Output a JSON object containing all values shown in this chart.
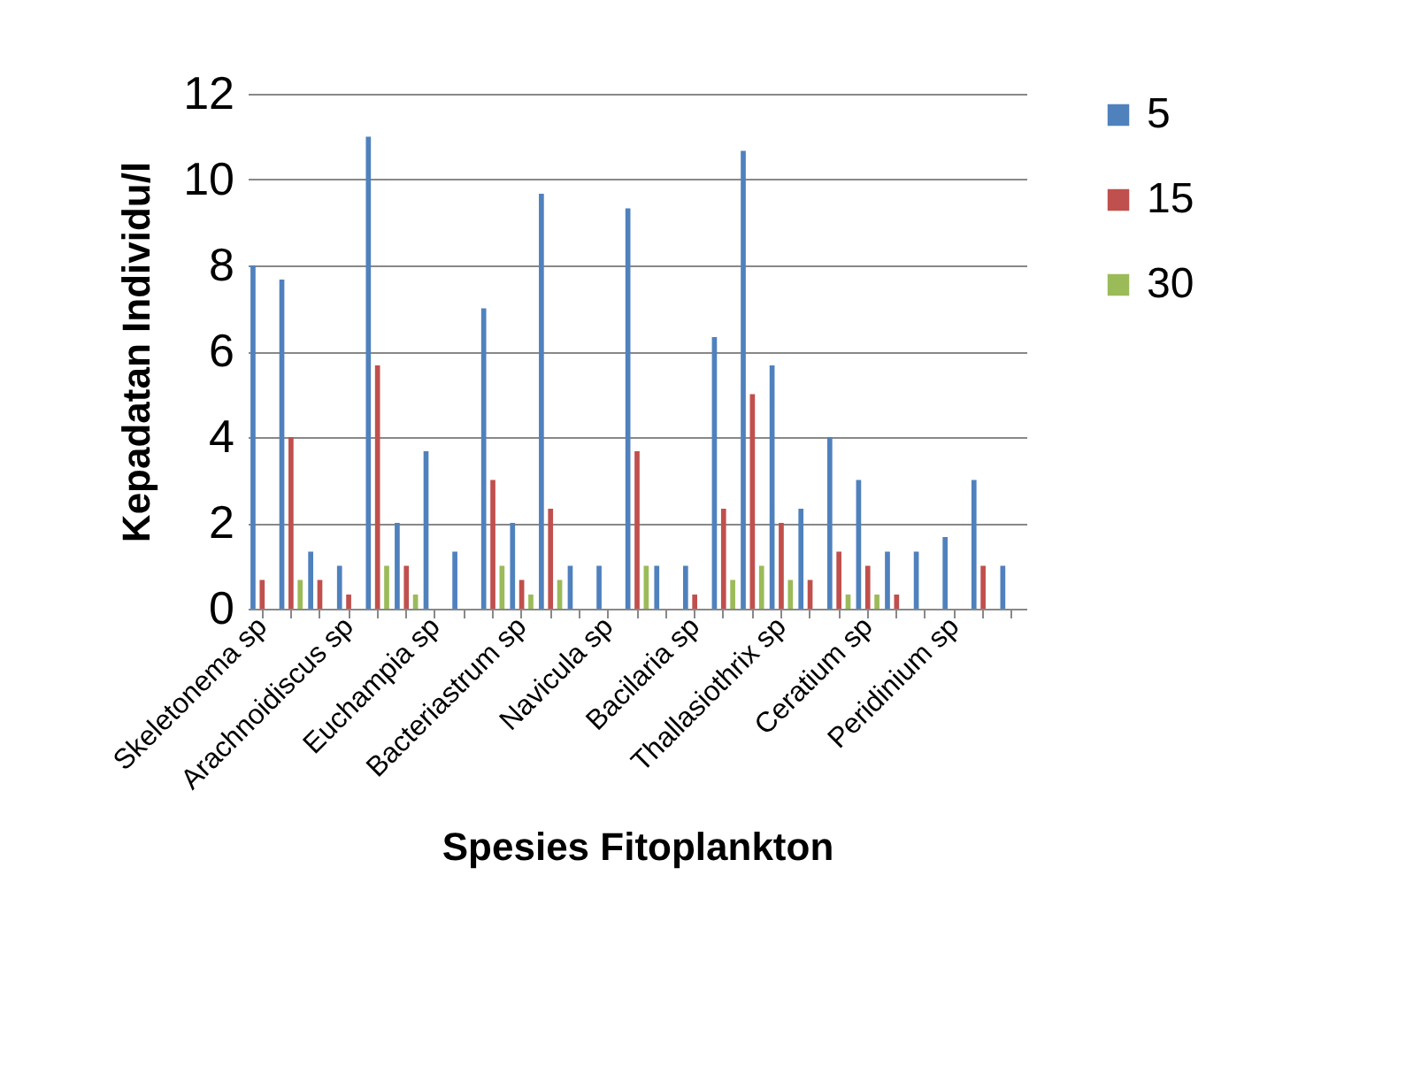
{
  "chart_data": {
    "type": "bar",
    "xlabel": "Spesies Fitoplankton",
    "ylabel": "Kepadatan Individu/l",
    "categories": [
      "Skeletonema sp",
      null,
      null,
      "Arachnoidiscus sp",
      null,
      null,
      "Euchampia sp",
      null,
      null,
      "Bacteriastrum sp",
      null,
      null,
      "Navicula sp",
      null,
      null,
      "Bacilaria sp",
      null,
      null,
      "Thallasiothrix sp",
      null,
      null,
      "Ceratium sp",
      null,
      null,
      "Peridinium sp",
      null,
      null
    ],
    "series": [
      {
        "name": "5",
        "color": "#4f81bd",
        "values": [
          8,
          7.67,
          1.33,
          1,
          11,
          2,
          3.67,
          1.33,
          7,
          2,
          9.67,
          1,
          1,
          9.33,
          1,
          1,
          6.33,
          10.67,
          5.67,
          2.33,
          4,
          3,
          1.33,
          1.33,
          1.67,
          3,
          1
        ]
      },
      {
        "name": "15",
        "color": "#c0504d",
        "values": [
          0.67,
          4,
          0.67,
          0.33,
          5.67,
          1,
          0,
          0,
          3,
          0.67,
          2.33,
          0,
          0,
          3.67,
          0,
          0.33,
          2.33,
          5,
          2,
          0.67,
          1.33,
          1,
          0.33,
          0,
          0,
          1,
          0
        ]
      },
      {
        "name": "30",
        "color": "#9bbb59",
        "values": [
          0,
          0.67,
          0,
          0,
          1,
          0.33,
          0,
          0,
          1,
          0.33,
          0.67,
          0,
          0,
          1,
          0,
          0,
          0.67,
          1,
          0.67,
          0,
          0.33,
          0.33,
          0,
          0,
          0,
          0,
          0
        ]
      }
    ],
    "ylim": [
      0,
      12
    ],
    "yticks": [
      0,
      2,
      4,
      6,
      8,
      10,
      12
    ],
    "grid": "y",
    "legend": "right"
  }
}
